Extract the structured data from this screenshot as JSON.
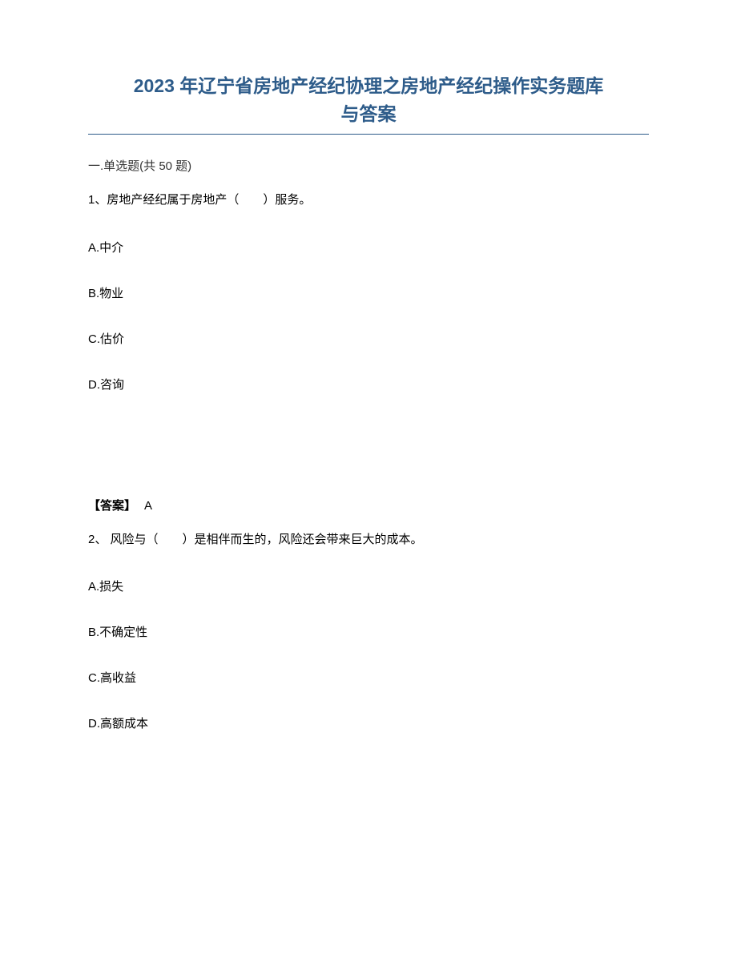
{
  "title_line1": "2023 年辽宁省房地产经纪协理之房地产经纪操作实务题库",
  "title_line2": "与答案",
  "section_header": "一.单选题(共 50 题)",
  "q1": {
    "text": "1、房地产经纪属于房地产（　　）服务。",
    "options": {
      "a": "A.中介",
      "b": "B.物业",
      "c": "C.估价",
      "d": "D.咨询"
    }
  },
  "answer1": {
    "label": "【答案】",
    "value": "A"
  },
  "q2": {
    "text": "2、 风险与（　　）是相伴而生的，风险还会带来巨大的成本。",
    "options": {
      "a": "A.损失",
      "b": "B.不确定性",
      "c": "C.高收益",
      "d": "D.高额成本"
    }
  },
  "colors": {
    "title_color": "#2e5c8a",
    "text_color": "#000000",
    "gray_color": "#888888",
    "background": "#ffffff"
  },
  "fonts": {
    "title_size": 23,
    "body_size": 15
  }
}
